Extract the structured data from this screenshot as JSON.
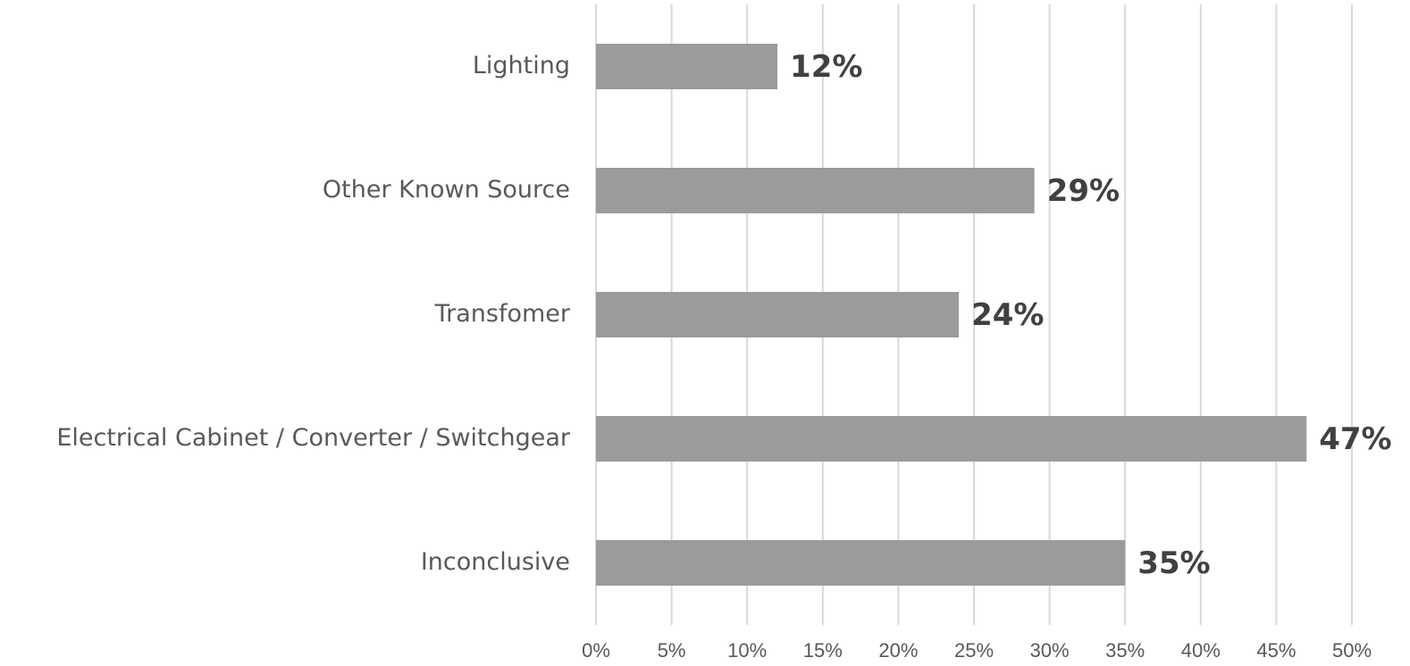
{
  "chart_data": {
    "type": "bar",
    "orientation": "horizontal",
    "categories": [
      "Lighting",
      "Other Known Source",
      "Transfomer",
      "Electrical Cabinet / Converter / Switchgear",
      "Inconclusive"
    ],
    "values": [
      12,
      29,
      24,
      47,
      35
    ],
    "value_labels": [
      "12%",
      "29%",
      "24%",
      "47%",
      "35%"
    ],
    "color": "#9b9b9b",
    "xlim": [
      0,
      50
    ],
    "xticks": [
      {
        "value": 0,
        "label": "0%"
      },
      {
        "value": 5,
        "label": "5%"
      },
      {
        "value": 10,
        "label": "10%"
      },
      {
        "value": 15,
        "label": "15%"
      },
      {
        "value": 20,
        "label": "20%"
      },
      {
        "value": 25,
        "label": "25%"
      },
      {
        "value": 30,
        "label": "30%"
      },
      {
        "value": 35,
        "label": "35%"
      },
      {
        "value": 40,
        "label": "40%"
      },
      {
        "value": 45,
        "label": "45%"
      },
      {
        "value": 50,
        "label": "50%"
      }
    ],
    "grid": true
  }
}
